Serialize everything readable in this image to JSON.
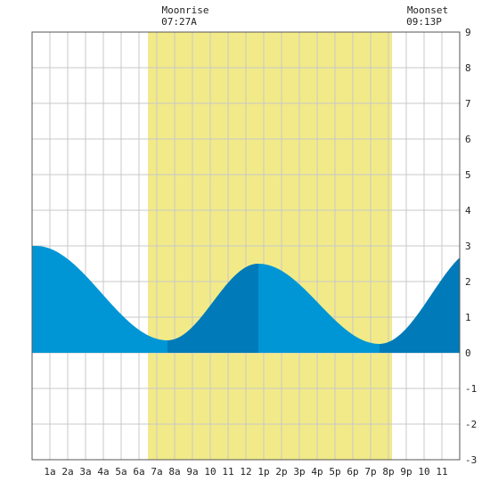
{
  "colors": {
    "background": "#ffffff",
    "grid": "#c8c8c8",
    "frame": "#555555",
    "moon_band": "#f2ea88",
    "tide_light": "#0096d6",
    "tide_dark": "#007ab8",
    "text": "#222222"
  },
  "annotations": {
    "moonrise_label": "Moonrise",
    "moonrise_time": "07:27A",
    "moonset_label": "Moonset",
    "moonset_time": "09:13P"
  },
  "chart_data": {
    "type": "area",
    "title": "",
    "xlabel": "",
    "ylabel": "",
    "xlim": [
      0,
      24
    ],
    "ylim": [
      -3,
      9
    ],
    "grid": true,
    "x_tick_labels": [
      "1a",
      "2a",
      "3a",
      "4a",
      "5a",
      "6a",
      "7a",
      "8a",
      "9a",
      "10",
      "11",
      "12",
      "1p",
      "2p",
      "3p",
      "4p",
      "5p",
      "6p",
      "7p",
      "8p",
      "9p",
      "10",
      "11"
    ],
    "y_tick_labels": [
      "-3",
      "-2",
      "-1",
      "0",
      "1",
      "2",
      "3",
      "4",
      "5",
      "6",
      "7",
      "8",
      "9"
    ],
    "moon_band": {
      "start_hour": 6.5,
      "end_hour": 20.2
    },
    "tide_extremes": [
      {
        "hour": 0.2,
        "height": 3.0,
        "kind": "high"
      },
      {
        "hour": 7.6,
        "height": 0.35,
        "kind": "low"
      },
      {
        "hour": 12.7,
        "height": 2.5,
        "kind": "high"
      },
      {
        "hour": 19.5,
        "height": 0.25,
        "kind": "low"
      },
      {
        "hour": 25.3,
        "height": 3.0,
        "kind": "high"
      }
    ],
    "dark_segments": [
      [
        7.6,
        12.7
      ],
      [
        19.5,
        24
      ]
    ]
  }
}
